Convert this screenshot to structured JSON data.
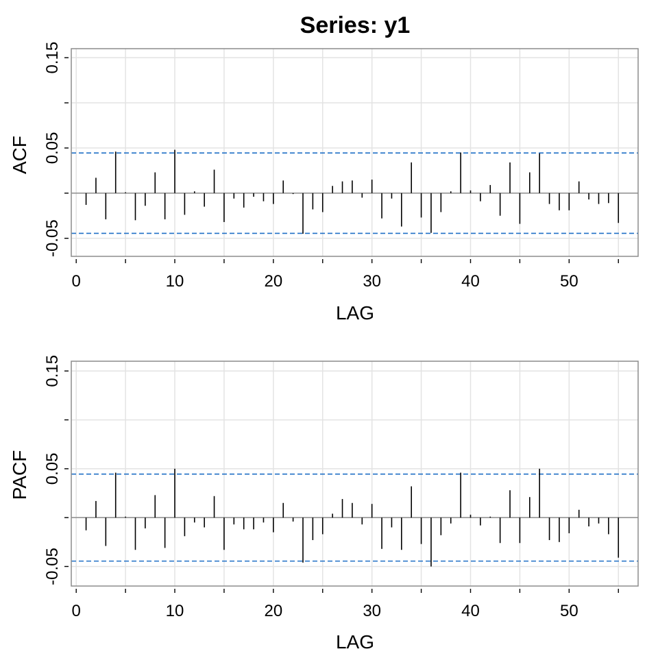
{
  "chart_data": [
    {
      "type": "bar",
      "title": "Series:  y1",
      "xlabel": "LAG",
      "ylabel": "ACF",
      "xlim": [
        -0.5,
        57
      ],
      "ylim": [
        -0.07,
        0.16
      ],
      "x_ticks": [
        0,
        10,
        20,
        30,
        40,
        50
      ],
      "y_ticks": [
        -0.05,
        0.05,
        0.15
      ],
      "y_tick_labels": [
        "-0.05",
        "0.05",
        "0.15"
      ],
      "confidence_band": [
        -0.0445,
        0.0445
      ],
      "grid": true,
      "lags": [
        1,
        2,
        3,
        4,
        5,
        6,
        7,
        8,
        9,
        10,
        11,
        12,
        13,
        14,
        15,
        16,
        17,
        18,
        19,
        20,
        21,
        22,
        23,
        24,
        25,
        26,
        27,
        28,
        29,
        30,
        31,
        32,
        33,
        34,
        35,
        36,
        37,
        38,
        39,
        40,
        41,
        42,
        43,
        44,
        45,
        46,
        47,
        48,
        49,
        50,
        51,
        52,
        53,
        54,
        55
      ],
      "values": [
        -0.013,
        0.017,
        -0.029,
        0.046,
        0.001,
        -0.03,
        -0.014,
        0.023,
        -0.029,
        0.048,
        -0.024,
        0.002,
        -0.015,
        0.026,
        -0.032,
        -0.006,
        -0.016,
        -0.004,
        -0.009,
        -0.012,
        0.014,
        -0.001,
        -0.045,
        -0.018,
        -0.021,
        0.008,
        0.013,
        0.014,
        -0.005,
        0.015,
        -0.028,
        -0.006,
        -0.037,
        0.034,
        -0.027,
        -0.044,
        -0.021,
        0.002,
        0.045,
        0.003,
        -0.009,
        0.009,
        -0.025,
        0.034,
        -0.034,
        0.023,
        0.044,
        -0.012,
        -0.019,
        -0.019,
        0.013,
        -0.007,
        -0.012,
        -0.011,
        -0.033
      ]
    },
    {
      "type": "bar",
      "xlabel": "LAG",
      "ylabel": "PACF",
      "xlim": [
        -0.5,
        57
      ],
      "ylim": [
        -0.07,
        0.16
      ],
      "x_ticks": [
        0,
        10,
        20,
        30,
        40,
        50
      ],
      "y_ticks": [
        -0.05,
        0.05,
        0.15
      ],
      "y_tick_labels": [
        "-0.05",
        "0.05",
        "0.15"
      ],
      "confidence_band": [
        -0.0445,
        0.0445
      ],
      "grid": true,
      "lags": [
        1,
        2,
        3,
        4,
        5,
        6,
        7,
        8,
        9,
        10,
        11,
        12,
        13,
        14,
        15,
        16,
        17,
        18,
        19,
        20,
        21,
        22,
        23,
        24,
        25,
        26,
        27,
        28,
        29,
        30,
        31,
        32,
        33,
        34,
        35,
        36,
        37,
        38,
        39,
        40,
        41,
        42,
        43,
        44,
        45,
        46,
        47,
        48,
        49,
        50,
        51,
        52,
        53,
        54,
        55
      ],
      "values": [
        -0.013,
        0.017,
        -0.029,
        0.046,
        0.001,
        -0.033,
        -0.011,
        0.023,
        -0.031,
        0.05,
        -0.019,
        -0.005,
        -0.01,
        0.022,
        -0.033,
        -0.007,
        -0.012,
        -0.012,
        -0.005,
        -0.015,
        0.015,
        -0.004,
        -0.046,
        -0.023,
        -0.017,
        0.004,
        0.019,
        0.015,
        -0.007,
        0.014,
        -0.032,
        -0.01,
        -0.033,
        0.032,
        -0.027,
        -0.05,
        -0.018,
        -0.006,
        0.046,
        0.003,
        -0.008,
        0.001,
        -0.026,
        0.028,
        -0.026,
        0.021,
        0.05,
        -0.023,
        -0.025,
        -0.016,
        0.008,
        -0.009,
        -0.006,
        -0.017,
        -0.041
      ]
    }
  ]
}
